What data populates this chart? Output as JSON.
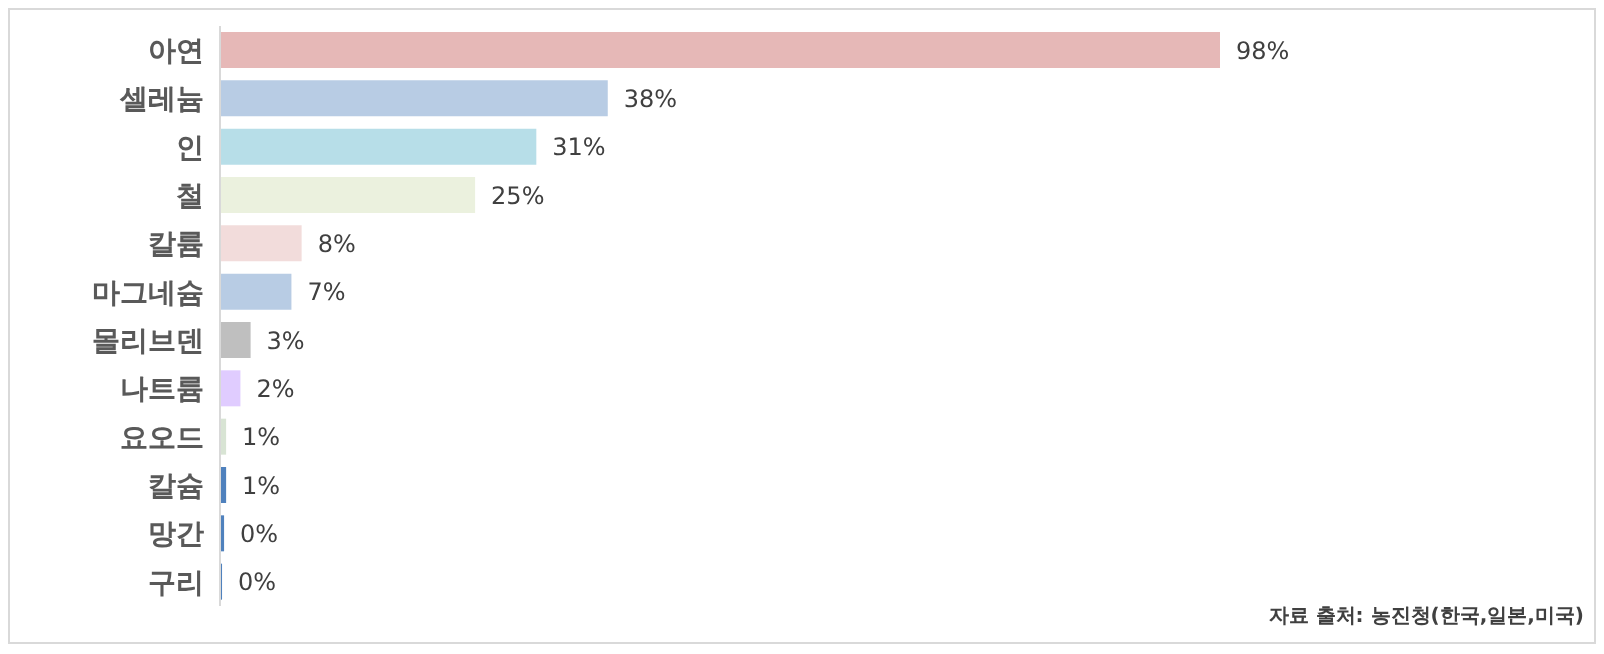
{
  "chart_data": {
    "type": "bar",
    "orientation": "horizontal",
    "categories": [
      "아연",
      "셀레늄",
      "인",
      "철",
      "칼륨",
      "마그네슘",
      "몰리브덴",
      "나트륨",
      "요오드",
      "칼슘",
      "망간",
      "구리"
    ],
    "values": [
      98,
      38,
      31,
      25,
      8,
      7,
      3,
      2,
      0.6,
      0.6,
      0.4,
      0.2
    ],
    "value_labels": [
      "98%",
      "38%",
      "31%",
      "25%",
      "8%",
      "7%",
      "3%",
      "2%",
      "1%",
      "1%",
      "0%",
      "0%"
    ],
    "colors": [
      "#e6b8b7",
      "#b8cce4",
      "#b7dee8",
      "#ebf1de",
      "#f2dcdb",
      "#b8cce4",
      "#bfbfbf",
      "#e0ccff",
      "#d8e4d4",
      "#4f81bd",
      "#4f81bd",
      "#4f81bd"
    ],
    "annotations": [
      "자료 출처: 농진청(한국,일본,미국)"
    ]
  }
}
